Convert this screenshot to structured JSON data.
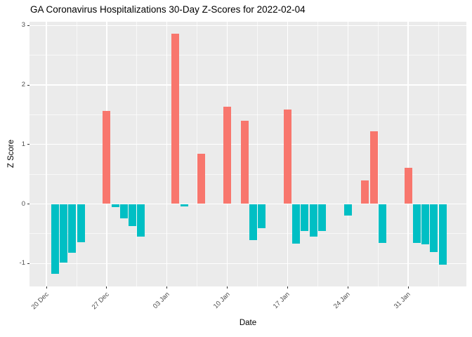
{
  "chart_data": {
    "type": "bar",
    "title": "GA Coronavirus Hospitalizations 30-Day Z-Scores for 2022-02-04",
    "xlabel": "Date",
    "ylabel": "Z Score",
    "legend": "none",
    "grid": "on",
    "x_axis": {
      "start_date": "2021-12-20",
      "tick_labels": [
        "20 Dec",
        "27 Dec",
        "03 Jan",
        "10 Jan",
        "17 Jan",
        "24 Jan",
        "31 Jan"
      ],
      "tick_days": [
        0,
        7,
        14,
        21,
        28,
        35,
        42
      ]
    },
    "y_axis": {
      "ticks": [
        -1,
        0,
        1,
        2,
        3
      ],
      "minor_ticks": [
        -0.5,
        0.5,
        1.5,
        2.5
      ],
      "range": [
        -1.38,
        3.06
      ]
    },
    "series": [
      {
        "date": "2021-12-21",
        "value": -1.17
      },
      {
        "date": "2021-12-22",
        "value": -0.98
      },
      {
        "date": "2021-12-23",
        "value": -0.82
      },
      {
        "date": "2021-12-24",
        "value": -0.64
      },
      {
        "date": "2021-12-27",
        "value": 1.57
      },
      {
        "date": "2021-12-28",
        "value": -0.05
      },
      {
        "date": "2021-12-29",
        "value": -0.24
      },
      {
        "date": "2021-12-30",
        "value": -0.37
      },
      {
        "date": "2021-12-31",
        "value": -0.55
      },
      {
        "date": "2022-01-04",
        "value": 2.86
      },
      {
        "date": "2022-01-05",
        "value": -0.04
      },
      {
        "date": "2022-01-07",
        "value": 0.85
      },
      {
        "date": "2022-01-10",
        "value": 1.63
      },
      {
        "date": "2022-01-12",
        "value": 1.4
      },
      {
        "date": "2022-01-13",
        "value": -0.61
      },
      {
        "date": "2022-01-14",
        "value": -0.41
      },
      {
        "date": "2022-01-17",
        "value": 1.59
      },
      {
        "date": "2022-01-18",
        "value": -0.67
      },
      {
        "date": "2022-01-19",
        "value": -0.46
      },
      {
        "date": "2022-01-20",
        "value": -0.55
      },
      {
        "date": "2022-01-21",
        "value": -0.46
      },
      {
        "date": "2022-01-24",
        "value": -0.19
      },
      {
        "date": "2022-01-26",
        "value": 0.39
      },
      {
        "date": "2022-01-27",
        "value": 1.22
      },
      {
        "date": "2022-01-28",
        "value": -0.65
      },
      {
        "date": "2022-01-31",
        "value": 0.61
      },
      {
        "date": "2022-02-01",
        "value": -0.66
      },
      {
        "date": "2022-02-02",
        "value": -0.68
      },
      {
        "date": "2022-02-03",
        "value": -0.81
      },
      {
        "date": "2022-02-04",
        "value": -1.02
      }
    ],
    "colors": {
      "positive_bar": "#F8766D",
      "negative_bar": "#00BFC4",
      "panel_background": "#EBEBEB",
      "gridline": "#FFFFFF",
      "axis_text": "#4D4D4D",
      "tick_mark": "#333333",
      "title_text": "#000000"
    }
  }
}
